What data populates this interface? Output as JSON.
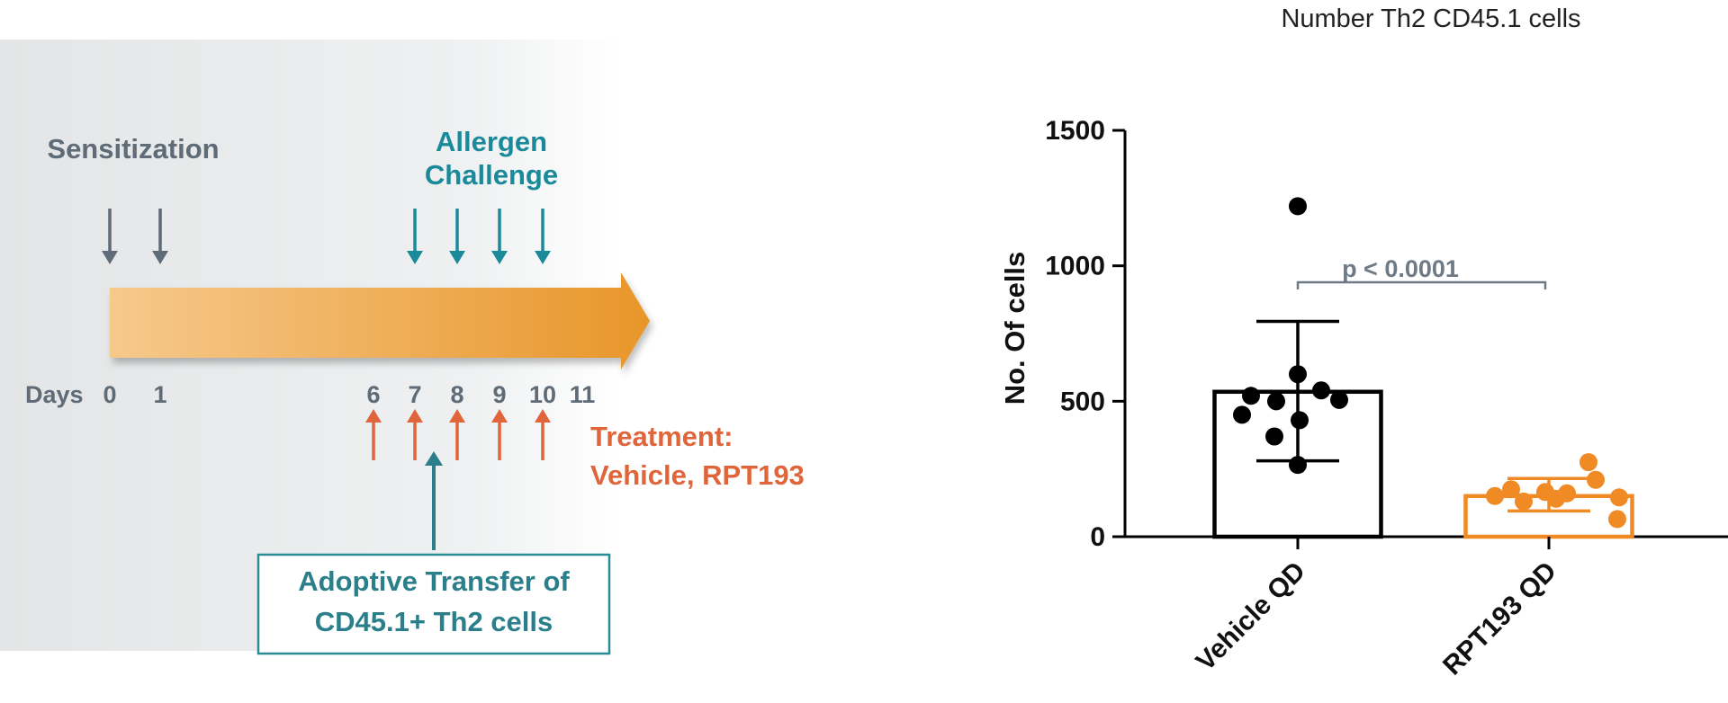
{
  "timeline": {
    "sensitization_label": "Sensitization",
    "challenge_label_line1": "Allergen",
    "challenge_label_line2": "Challenge",
    "days_label": "Days",
    "days": [
      "0",
      "1",
      "6",
      "7",
      "8",
      "9",
      "10",
      "11"
    ],
    "sensitization_days": [
      "0",
      "1"
    ],
    "challenge_days": [
      "7",
      "8",
      "9",
      "10"
    ],
    "treatment_days": [
      "6",
      "7",
      "8",
      "9",
      "10"
    ],
    "treatment_label_line1": "Treatment:",
    "treatment_label_line2": "Vehicle, RPT193",
    "transfer_day": "7",
    "transfer_label_line1": "Adoptive Transfer of",
    "transfer_label_line2": "CD45.1+ Th2 cells",
    "colors": {
      "gray": "#5f6b76",
      "teal": "#1a8a9a",
      "orange_text": "#e0653a",
      "arrow_start": "#f6c98c",
      "arrow_end": "#e8962a",
      "transfer_box_border": "#2a8c95",
      "transfer_text": "#2a7f8a"
    }
  },
  "chart_data": {
    "type": "bar",
    "title": "Number Th2 CD45.1 cells",
    "ylabel": "No. Of cells",
    "xlabel": "",
    "ylim": [
      0,
      1500
    ],
    "yticks": [
      0,
      500,
      1000,
      1500
    ],
    "categories": [
      "Vehicle QD",
      "RPT193 QD"
    ],
    "values": [
      535,
      150
    ],
    "error_low": [
      280,
      95
    ],
    "error_high": [
      795,
      215
    ],
    "points": [
      [
        1220,
        600,
        540,
        520,
        505,
        500,
        450,
        430,
        370,
        265
      ],
      [
        275,
        210,
        175,
        165,
        160,
        150,
        145,
        140,
        130,
        65
      ]
    ],
    "colors": [
      "#000000",
      "#f08a24"
    ],
    "annotation": "p < 0.0001",
    "grid": false,
    "legend": "none"
  }
}
